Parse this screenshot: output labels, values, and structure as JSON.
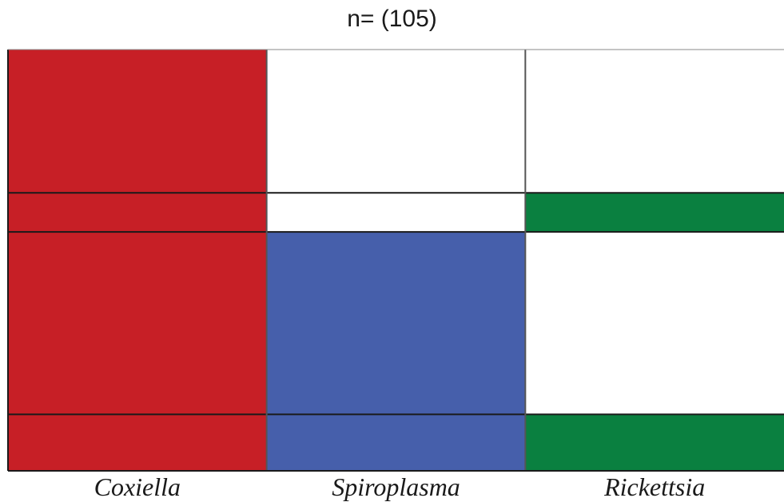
{
  "chart_data": {
    "type": "heatmap",
    "title": "n= (105)",
    "columns": [
      {
        "name": "Coxiella",
        "color": "#c71f26"
      },
      {
        "name": "Spiroplasma",
        "color": "#465fab"
      },
      {
        "name": "Rickettsia",
        "color": "#0a8040"
      }
    ],
    "row_proportions": [
      0.33,
      0.09,
      0.42,
      0.13
    ],
    "cells": [
      [
        true,
        false,
        false
      ],
      [
        true,
        false,
        true
      ],
      [
        true,
        true,
        false
      ],
      [
        true,
        true,
        true
      ]
    ],
    "background_color": "#ffffff",
    "line_color": "#1a1a1a"
  }
}
